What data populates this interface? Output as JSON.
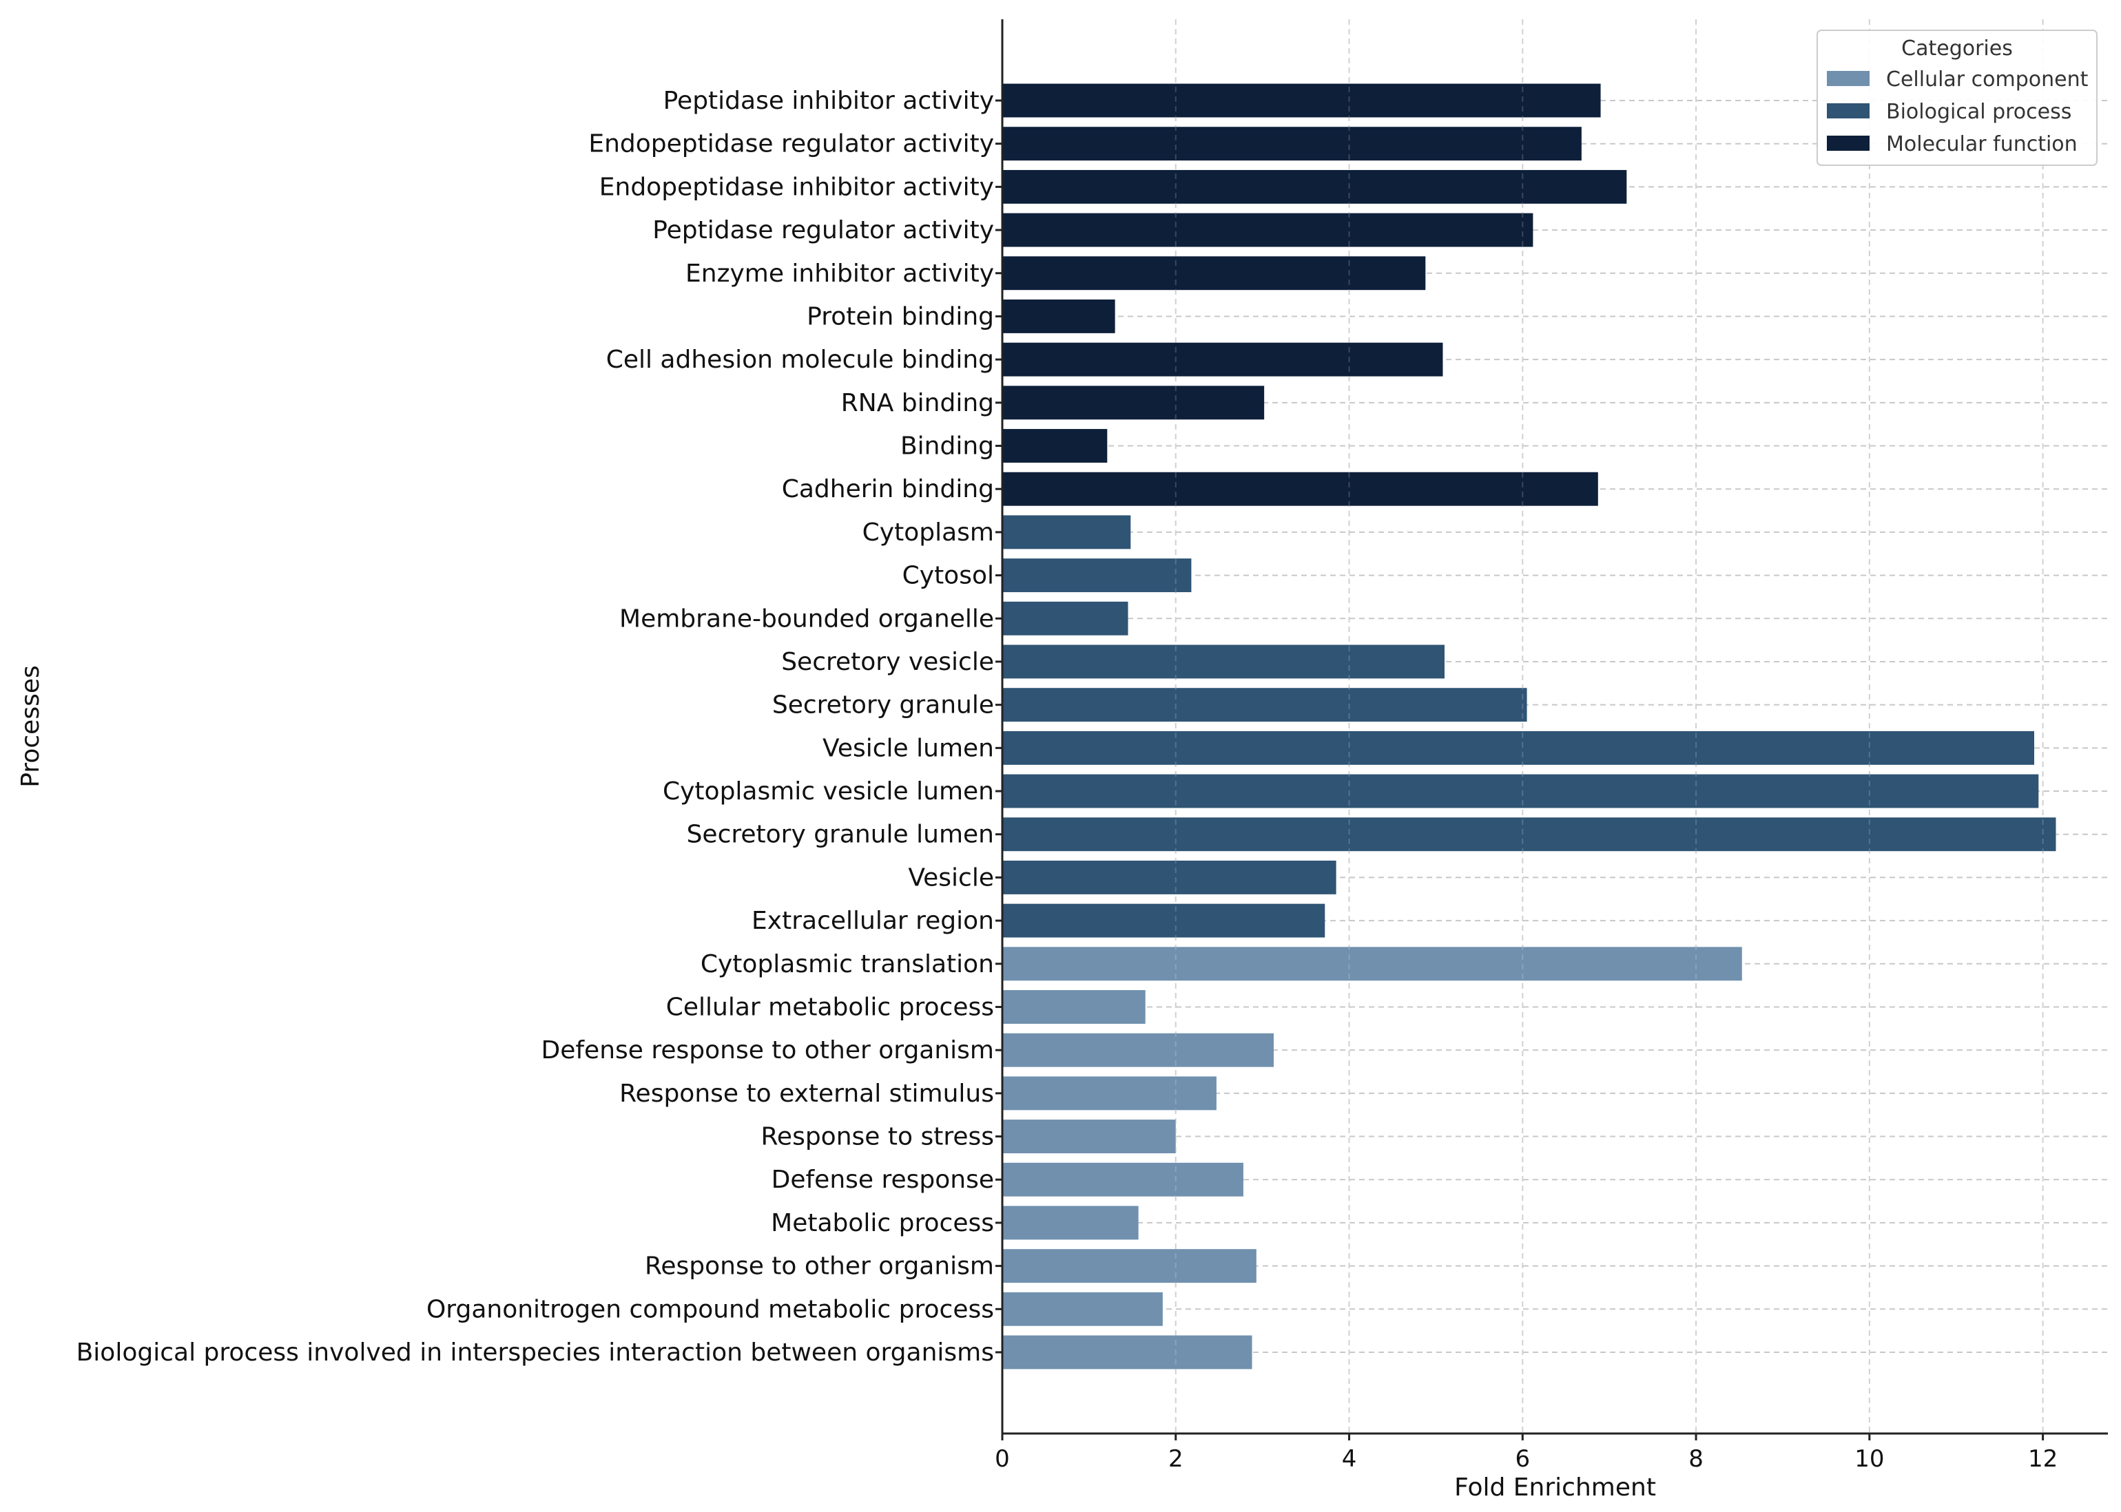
{
  "chart_data": {
    "type": "bar",
    "orientation": "horizontal",
    "title": "",
    "xlabel": "Fold Enrichment",
    "ylabel": "Processes",
    "xlim": [
      0,
      12.75
    ],
    "xticks": [
      0,
      2,
      4,
      6,
      8,
      10,
      12
    ],
    "grid": true,
    "legend": {
      "title": "Categories",
      "position": "top-right",
      "entries": [
        {
          "name": "Cellular component",
          "color": "#7090ae"
        },
        {
          "name": "Biological process",
          "color": "#2f5474"
        },
        {
          "name": "Molecular function",
          "color": "#0e1f3a"
        }
      ]
    },
    "categories": [
      "Peptidase inhibitor activity",
      "Endopeptidase regulator activity",
      "Endopeptidase inhibitor activity",
      "Peptidase regulator activity",
      "Enzyme inhibitor activity",
      "Protein binding",
      "Cell adhesion molecule binding",
      "RNA binding",
      "Binding",
      "Cadherin binding",
      "Cytoplasm",
      "Cytosol",
      "Membrane-bounded organelle",
      "Secretory vesicle",
      "Secretory granule",
      "Vesicle lumen",
      "Cytoplasmic vesicle lumen",
      "Secretory granule lumen",
      "Vesicle",
      "Extracellular region",
      "Cytoplasmic translation",
      "Cellular metabolic process",
      "Defense response to other organism",
      "Response to external stimulus",
      "Response to stress",
      "Defense response",
      "Metabolic process",
      "Response to other organism",
      "Organonitrogen compound metabolic process",
      "Biological process involved in interspecies interaction between organisms"
    ],
    "values": [
      6.9,
      6.68,
      7.2,
      6.12,
      4.88,
      1.3,
      5.08,
      3.02,
      1.21,
      6.87,
      1.48,
      2.18,
      1.45,
      5.1,
      6.05,
      11.9,
      11.95,
      12.15,
      3.85,
      3.72,
      8.53,
      1.65,
      3.13,
      2.47,
      2.0,
      2.78,
      1.57,
      2.93,
      1.85,
      2.88
    ],
    "series_membership": [
      "Molecular function",
      "Molecular function",
      "Molecular function",
      "Molecular function",
      "Molecular function",
      "Molecular function",
      "Molecular function",
      "Molecular function",
      "Molecular function",
      "Molecular function",
      "Biological process",
      "Biological process",
      "Biological process",
      "Biological process",
      "Biological process",
      "Biological process",
      "Biological process",
      "Biological process",
      "Biological process",
      "Biological process",
      "Cellular component",
      "Cellular component",
      "Cellular component",
      "Cellular component",
      "Cellular component",
      "Cellular component",
      "Cellular component",
      "Cellular component",
      "Cellular component",
      "Cellular component"
    ]
  }
}
